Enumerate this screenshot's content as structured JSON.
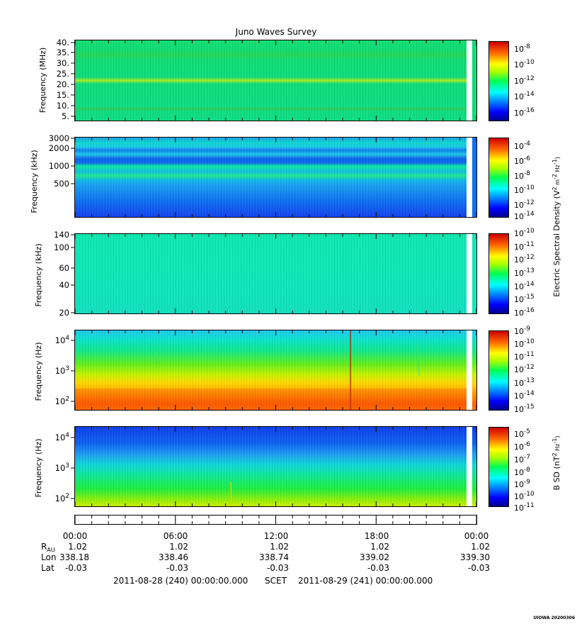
{
  "chart_data": {
    "type": "heatmap",
    "title": "Juno Waves Survey",
    "panels": [
      {
        "ylabel": "Frequency (MHz)",
        "y_scale": "linear",
        "ylim": [
          3.5,
          41
        ],
        "y_ticks": [
          "40.",
          "35.",
          "30.",
          "25.",
          "20.",
          "15.",
          "10.",
          "5."
        ],
        "colorbar": {
          "scale": "log",
          "range_exp": [
            -17,
            -7
          ],
          "tick_labels": [
            "10-8",
            "10-10",
            "10-12",
            "10-14",
            "10-16"
          ]
        }
      },
      {
        "ylabel": "Frequency (kHz)",
        "y_scale": "log",
        "ylim": [
          140,
          3000
        ],
        "y_ticks": [
          "3000",
          "2000",
          "1000",
          "500"
        ],
        "colorbar": {
          "scale": "log",
          "range_exp": [
            -14,
            -3.5
          ],
          "tick_labels": [
            "10-4",
            "10-6",
            "10-8",
            "10-10",
            "10-12",
            "10-14"
          ]
        }
      },
      {
        "ylabel": "Frequency (kHz)",
        "y_scale": "log",
        "ylim": [
          20,
          140
        ],
        "y_ticks": [
          "140",
          "100",
          "60",
          "40",
          "20"
        ],
        "colorbar": {
          "scale": "log",
          "range_exp": [
            -16,
            -10
          ],
          "tick_labels": [
            "10-10",
            "10-11",
            "10-12",
            "10-13",
            "10-14",
            "10-15",
            "10-16"
          ]
        }
      },
      {
        "ylabel": "Frequency (Hz)",
        "y_scale": "log",
        "ylim": [
          50,
          20000
        ],
        "y_ticks": [
          "104",
          "103",
          "102"
        ],
        "colorbar": {
          "scale": "log",
          "range_exp": [
            -15,
            -9
          ],
          "tick_labels": [
            "10-9",
            "10-10",
            "10-11",
            "10-12",
            "10-13",
            "10-14",
            "10-15"
          ]
        }
      },
      {
        "ylabel": "Frequency (Hz)",
        "y_scale": "log",
        "ylim": [
          50,
          20000
        ],
        "y_ticks": [
          "104",
          "103",
          "102"
        ],
        "colorbar": {
          "scale": "log",
          "range_exp": [
            -11,
            -4.5
          ],
          "tick_labels": [
            "10-5",
            "10-6",
            "10-7",
            "10-8",
            "10-9",
            "10-10",
            "10-11"
          ]
        }
      }
    ],
    "colorbar_labels": {
      "electric": "Electric Spectral Density (V2 m-2 Hz-1)",
      "magnetic": "B SD (nT2 Hz-1)"
    },
    "x_axis": {
      "ticks": [
        "00:00",
        "06:00",
        "12:00",
        "18:00",
        "00:00"
      ],
      "rows": [
        {
          "label": "RAU",
          "values": [
            "1.02",
            "1.02",
            "1.02",
            "1.02",
            "1.02"
          ]
        },
        {
          "label": "Lon",
          "values": [
            "338.18",
            "338.46",
            "338.74",
            "339.02",
            "339.30"
          ]
        },
        {
          "label": "Lat",
          "values": [
            "-0.03",
            "-0.03",
            "-0.03",
            "-0.03",
            "-0.03"
          ]
        }
      ],
      "start_label": "2011-08-28 (240) 00:00:00.000",
      "frame_label": "SCET",
      "end_label": "2011-08-29 (241) 00:00:00.000"
    },
    "footer_stamp": "UIOWA 20200306"
  }
}
